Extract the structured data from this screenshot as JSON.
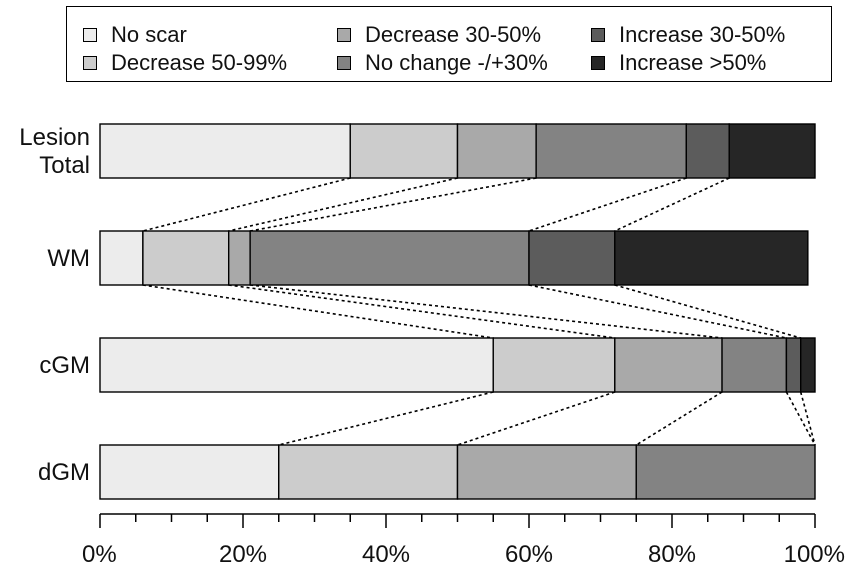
{
  "chart_data": {
    "type": "bar",
    "orientation": "horizontal",
    "stacked": true,
    "categories": [
      "Lesion Total",
      "WM",
      "cGM",
      "dGM"
    ],
    "category_lines": [
      [
        "Lesion",
        "Total"
      ],
      [
        "WM"
      ],
      [
        "cGM"
      ],
      [
        "dGM"
      ]
    ],
    "series": [
      {
        "name": "No scar",
        "color": "#ececec",
        "values": [
          35,
          6,
          55,
          25
        ]
      },
      {
        "name": "Decrease 50-99%",
        "color": "#cccccc",
        "values": [
          15,
          12,
          17,
          25
        ]
      },
      {
        "name": "Decrease 30-50%",
        "color": "#a9a9a9",
        "values": [
          11,
          3,
          15,
          25
        ]
      },
      {
        "name": "No change -/+30%",
        "color": "#838383",
        "values": [
          21,
          39,
          9,
          25
        ]
      },
      {
        "name": "Increase 30-50%",
        "color": "#5c5c5c",
        "values": [
          6,
          12,
          2,
          0
        ]
      },
      {
        "name": "Increase >50%",
        "color": "#262626",
        "values": [
          12,
          27,
          2,
          0
        ]
      }
    ],
    "xlim": [
      0,
      100
    ],
    "x_ticks": [
      "0%",
      "20%",
      "40%",
      "60%",
      "80%",
      "100%"
    ],
    "x_tick_values": [
      0,
      20,
      40,
      60,
      80,
      100
    ],
    "minor_tick_step": 5,
    "legend_position": "top",
    "connector_lines": "dotted",
    "grid": false
  }
}
